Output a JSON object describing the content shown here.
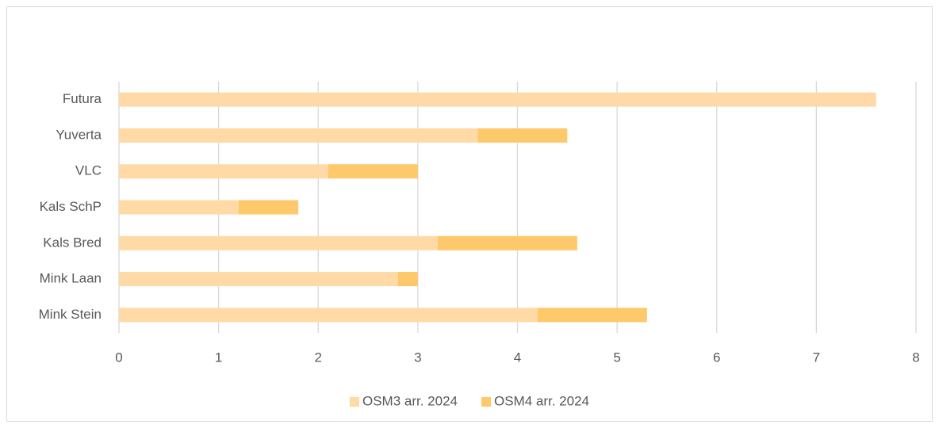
{
  "chart_data": {
    "type": "stacked-barh",
    "categories": [
      "Futura",
      "Yuverta",
      "VLC",
      "Kals SchP",
      "Kals Bred",
      "Mink Laan",
      "Mink Stein"
    ],
    "series": [
      {
        "name": "OSM3 arr. 2024",
        "color": "#ffdaa6",
        "values": [
          7.6,
          3.6,
          2.1,
          1.2,
          3.2,
          2.8,
          4.2
        ]
      },
      {
        "name": "OSM4 arr. 2024",
        "color": "#fec96b",
        "values": [
          0,
          0.9,
          0.9,
          0.6,
          1.4,
          0.2,
          1.1
        ]
      }
    ],
    "xlim": [
      0,
      8
    ],
    "xticks": [
      0,
      1,
      2,
      3,
      4,
      5,
      6,
      7,
      8
    ],
    "grid": true,
    "legend": "bottom"
  }
}
